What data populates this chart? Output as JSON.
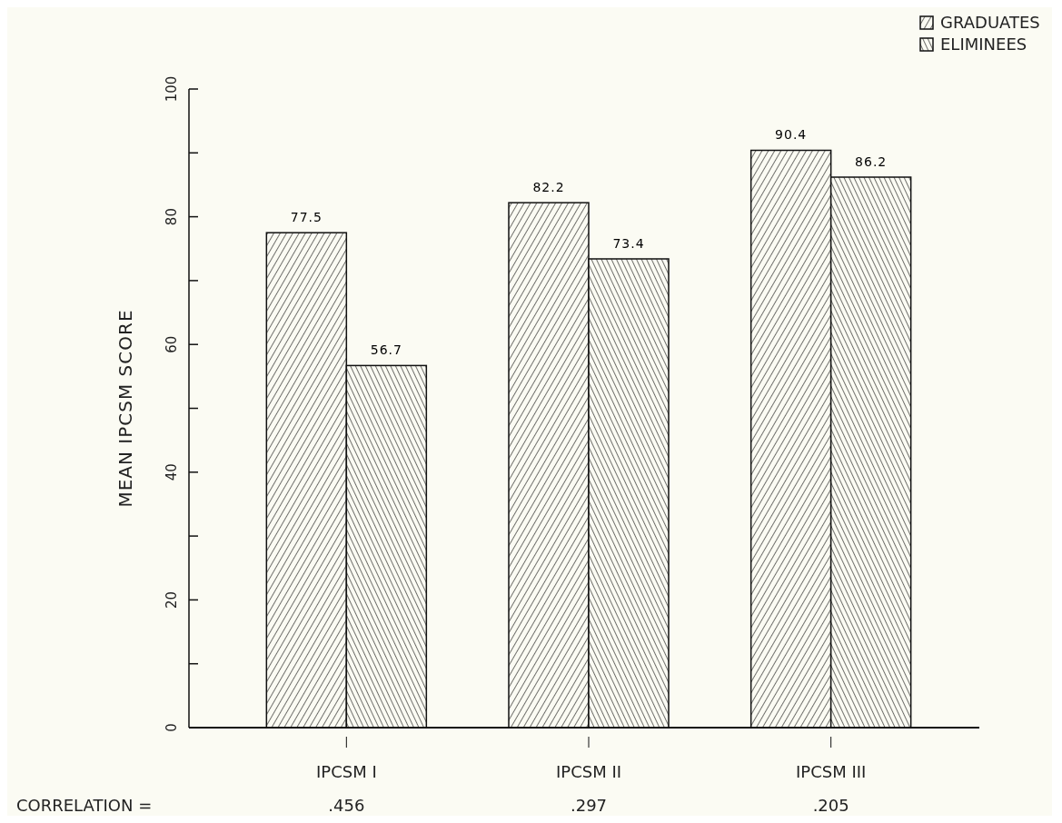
{
  "chart_data": {
    "type": "bar",
    "categories": [
      "IPCSM I",
      "IPCSM II",
      "IPCSM III"
    ],
    "ylabel": "MEAN IPCSM SCORE",
    "series": [
      {
        "name": "GRADUATES",
        "color": "#111111",
        "values": [
          77.5,
          82.2,
          90.4
        ]
      },
      {
        "name": "ELIMINEES",
        "color": "#111111",
        "values": [
          56.7,
          73.4,
          86.2
        ]
      }
    ],
    "ylim": [
      0,
      100
    ],
    "yticks": [
      0,
      {
        "value": 10,
        "label": null
      },
      20,
      {
        "value": 30,
        "label": null
      },
      40,
      {
        "value": 50,
        "label": null
      },
      60,
      {
        "value": 70,
        "label": null
      },
      80,
      {
        "value": 90,
        "label": null
      },
      100
    ],
    "data_labels": true,
    "legend": "top right",
    "grid": false,
    "annotations": [
      "CORRELATION =",
      ".456",
      ".297",
      ".205"
    ]
  }
}
